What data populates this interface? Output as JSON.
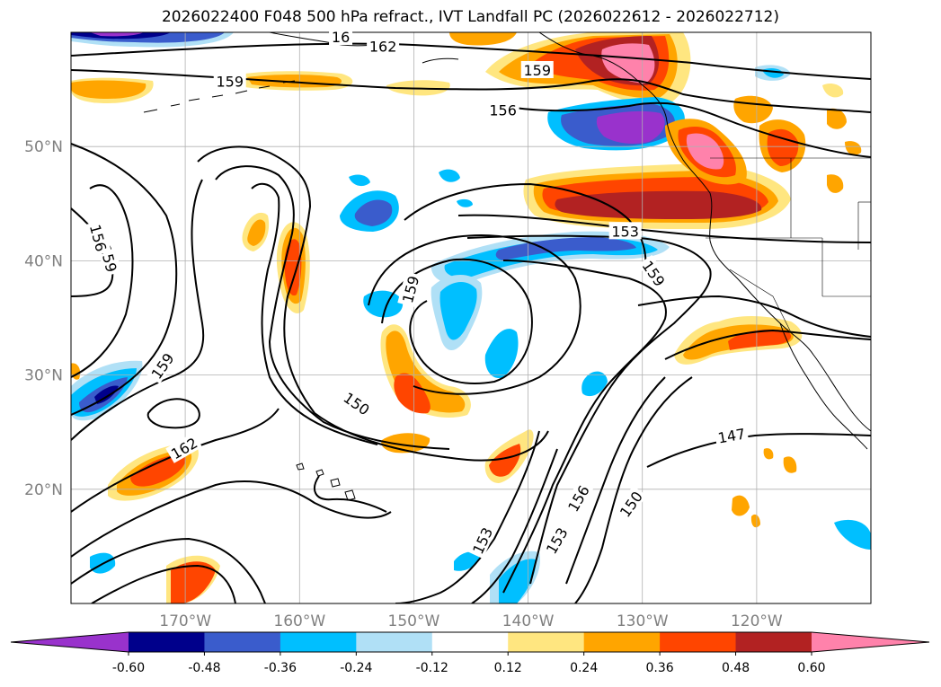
{
  "title": "2026022400 F048 500 hPa refract., IVT Landfall PC (2026022612 - 2026022712)",
  "map": {
    "lon_range": [
      -180,
      -110
    ],
    "lat_range": [
      10,
      60
    ],
    "lat_labels": [
      {
        "lat": 50,
        "text": "50°N"
      },
      {
        "lat": 40,
        "text": "40°N"
      },
      {
        "lat": 30,
        "text": "30°N"
      },
      {
        "lat": 20,
        "text": "20°N"
      }
    ],
    "lon_labels": [
      {
        "lon": -170,
        "text": "170°W"
      },
      {
        "lon": -160,
        "text": "160°W"
      },
      {
        "lon": -150,
        "text": "150°W"
      },
      {
        "lon": -140,
        "text": "140°W"
      },
      {
        "lon": -130,
        "text": "130°W"
      },
      {
        "lon": -120,
        "text": "120°W"
      }
    ],
    "contour_labels": [
      {
        "text": "162",
        "lon": -152.7,
        "lat": 58.8,
        "rot": 0
      },
      {
        "text": "162",
        "lon": -170.1,
        "lat": 23.6,
        "rot": -30
      },
      {
        "text": "159",
        "lon": -139.2,
        "lat": 56.7,
        "rot": 0
      },
      {
        "text": "159",
        "lon": -166.1,
        "lat": 55.7,
        "rot": 0
      },
      {
        "text": "159",
        "lon": -150.3,
        "lat": 37.5,
        "rot": -75
      },
      {
        "text": "159",
        "lon": -129.0,
        "lat": 38.9,
        "rot": 55
      },
      {
        "text": "159",
        "lon": -172.0,
        "lat": 30.8,
        "rot": -55
      },
      {
        "text": "159",
        "lon": -176.7,
        "lat": 40.2,
        "rot": 75
      },
      {
        "text": "156",
        "lon": -142.2,
        "lat": 53.2,
        "rot": 0
      },
      {
        "text": "156",
        "lon": -177.6,
        "lat": 42.0,
        "rot": 75
      },
      {
        "text": "156",
        "lon": -135.6,
        "lat": 19.2,
        "rot": -60
      },
      {
        "text": "153",
        "lon": -131.5,
        "lat": 42.6,
        "rot": 0
      },
      {
        "text": "153",
        "lon": -144.0,
        "lat": 15.5,
        "rot": -65
      },
      {
        "text": "153",
        "lon": -137.5,
        "lat": 15.5,
        "rot": -60
      },
      {
        "text": "150",
        "lon": -155.0,
        "lat": 27.5,
        "rot": 35
      },
      {
        "text": "150",
        "lon": -131.0,
        "lat": 18.7,
        "rot": -55
      },
      {
        "text": "147",
        "lon": -122.2,
        "lat": 24.7,
        "rot": -10
      },
      {
        "text": "16",
        "lon": -156.4,
        "lat": 59.6,
        "rot": 0
      }
    ]
  },
  "colorbar": {
    "ticks": [
      "-0.60",
      "-0.48",
      "-0.36",
      "-0.24",
      "-0.12",
      "0.12",
      "0.24",
      "0.36",
      "0.48",
      "0.60"
    ],
    "colors": [
      "#9932cc",
      "#00008b",
      "#3a5ccc",
      "#00bfff",
      "#b0e0f6",
      "#ffffff",
      "#ffe680",
      "#ffa500",
      "#ff4500",
      "#b22222",
      "#ff82ab"
    ]
  }
}
